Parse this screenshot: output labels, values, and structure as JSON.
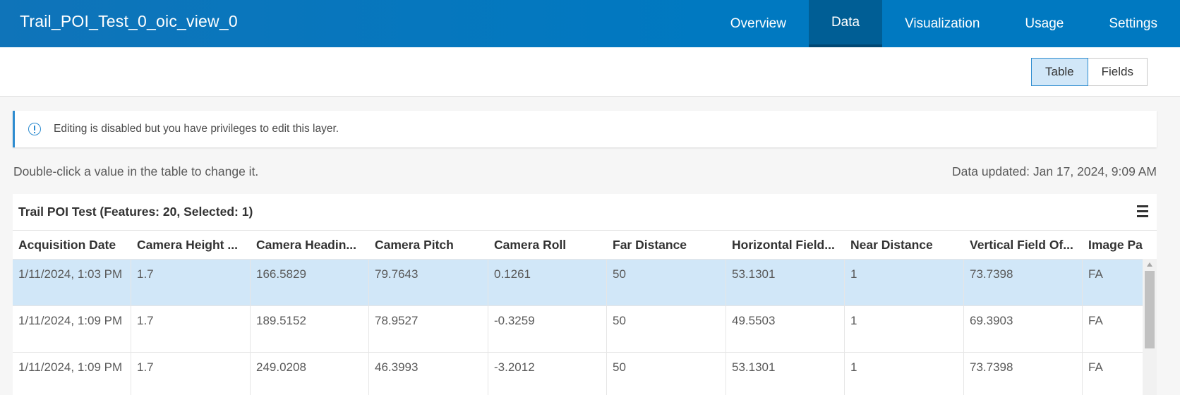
{
  "header": {
    "title": "Trail_POI_Test_0_oic_view_0",
    "tabs": [
      {
        "label": "Overview",
        "active": false
      },
      {
        "label": "Data",
        "active": true
      },
      {
        "label": "Visualization",
        "active": false
      },
      {
        "label": "Usage",
        "active": false
      },
      {
        "label": "Settings",
        "active": false
      }
    ]
  },
  "view_toggle": {
    "table_label": "Table",
    "fields_label": "Fields",
    "selected": "Table"
  },
  "notice": {
    "icon": "info-icon",
    "text": "Editing is disabled but you have privileges to edit this layer."
  },
  "hint_text": "Double-click a value in the table to change it.",
  "updated_text": "Data updated: Jan 17, 2024, 9:09 AM",
  "table": {
    "title": "Trail POI Test (Features: 20, Selected: 1)",
    "menu_icon": "hamburger-menu-icon",
    "columns": [
      "Acquisition Date",
      "Camera Height ...",
      "Camera Headin...",
      "Camera Pitch",
      "Camera Roll",
      "Far Distance",
      "Horizontal Field...",
      "Near Distance",
      "Vertical Field Of...",
      "Image Pa"
    ],
    "rows": [
      {
        "selected": true,
        "cells": [
          "1/11/2024, 1:03 PM",
          "1.7",
          "166.5829",
          "79.7643",
          "0.1261",
          "50",
          "53.1301",
          "1",
          "73.7398",
          "FA"
        ]
      },
      {
        "selected": false,
        "cells": [
          "1/11/2024, 1:09 PM",
          "1.7",
          "189.5152",
          "78.9527",
          "-0.3259",
          "50",
          "49.5503",
          "1",
          "69.3903",
          "FA"
        ]
      },
      {
        "selected": false,
        "cells": [
          "1/11/2024, 1:09 PM",
          "1.7",
          "249.0208",
          "46.3993",
          "-3.2012",
          "50",
          "53.1301",
          "1",
          "73.7398",
          "FA"
        ]
      }
    ]
  },
  "colors": {
    "header_bg": "#0079c1",
    "active_tab_bg": "#005e95",
    "selected_row_bg": "#d1e7f8",
    "accent": "#2d8cd0"
  }
}
